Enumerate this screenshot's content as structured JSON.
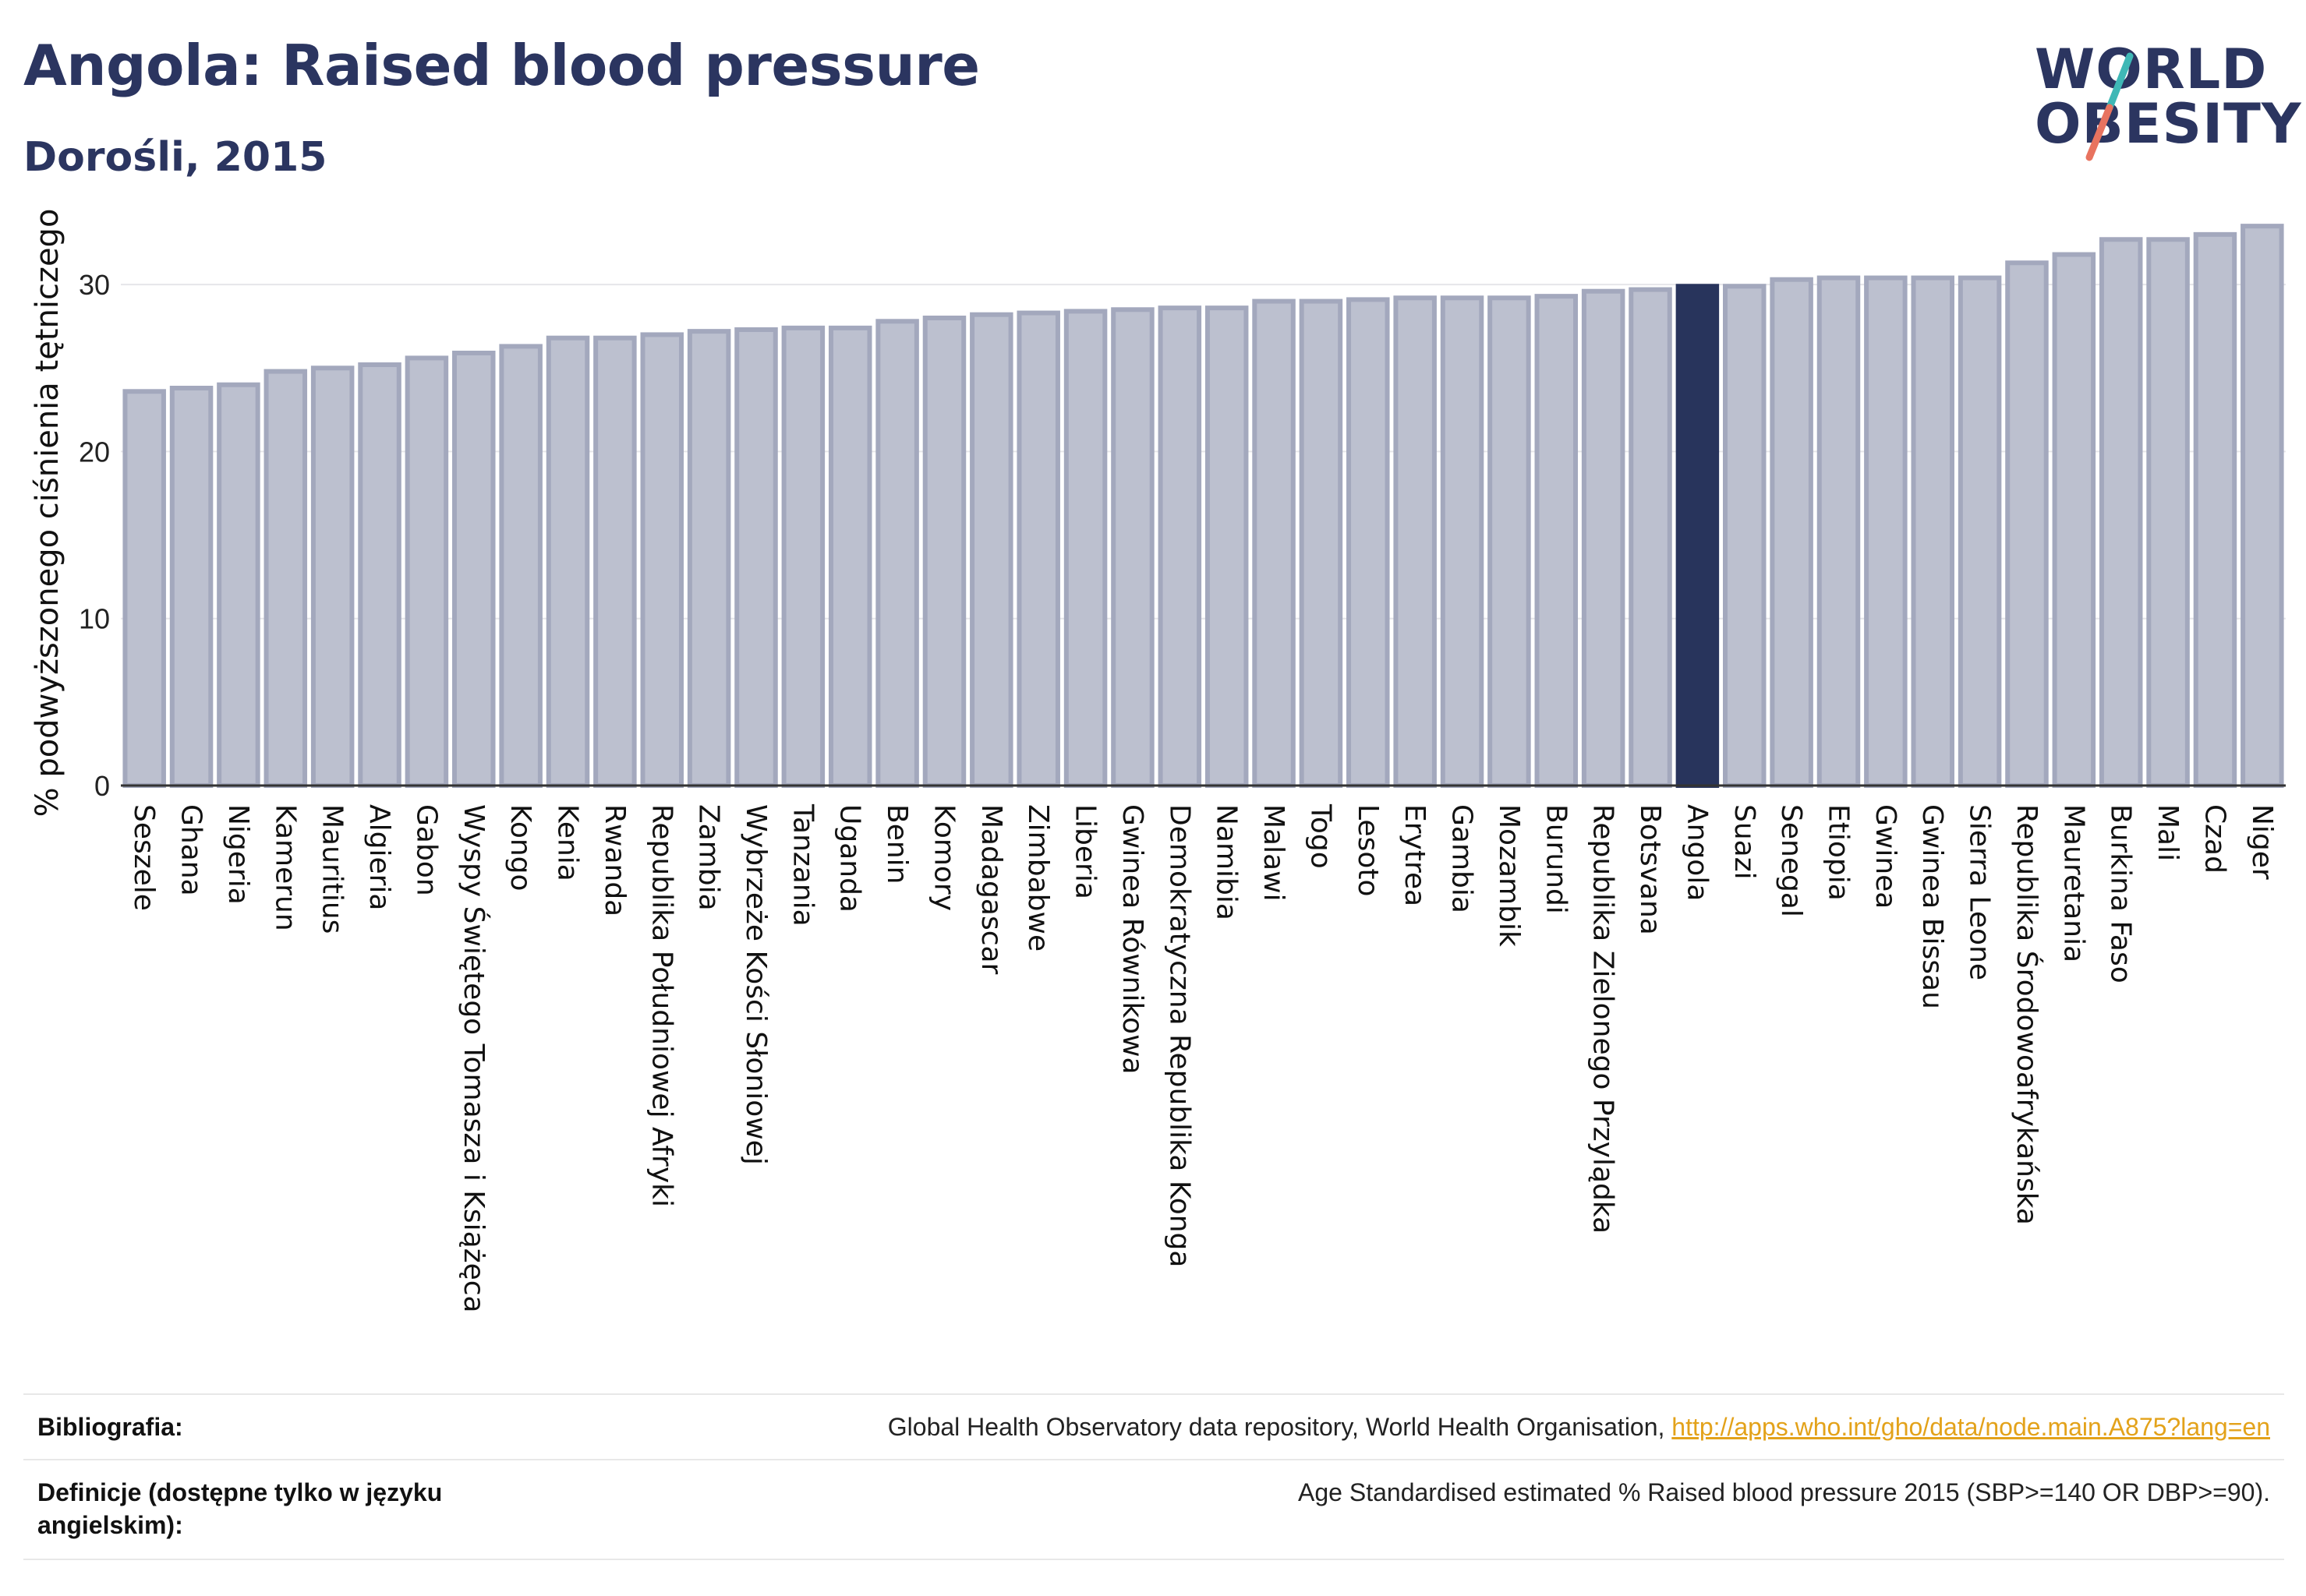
{
  "header": {
    "title": "Angola: Raised blood pressure",
    "subtitle": "Dorośli, 2015"
  },
  "logo": {
    "line1": "WORLD",
    "line2": "OBESITY",
    "accent_teal": "#3fb8b6",
    "accent_coral": "#e8735f"
  },
  "colors": {
    "bar_fill": "#bcc0cf",
    "bar_stroke": "#a3a8bd",
    "highlight_fill": "#28345c",
    "axis": "#333333",
    "grid": "#e6e6ea",
    "text_dark": "#2b3560"
  },
  "chart_data": {
    "type": "bar",
    "ylabel": "% podwyższonego ciśnienia tętniczego",
    "ylim": [
      0,
      35
    ],
    "yticks": [
      0,
      10,
      20,
      30
    ],
    "grid": true,
    "highlight": "Angola",
    "categories": [
      "Seszele",
      "Ghana",
      "Nigeria",
      "Kamerun",
      "Mauritius",
      "Algieria",
      "Gabon",
      "Wyspy Świętego Tomasza i Książęca",
      "Kongo",
      "Kenia",
      "Rwanda",
      "Republika Południowej Afryki",
      "Zambia",
      "Wybrzeże Kości Słoniowej",
      "Tanzania",
      "Uganda",
      "Benin",
      "Komory",
      "Madagascar",
      "Zimbabwe",
      "Liberia",
      "Gwinea Równikowa",
      "Demokratyczna Republika Konga",
      "Namibia",
      "Malawi",
      "Togo",
      "Lesoto",
      "Erytrea",
      "Gambia",
      "Mozambik",
      "Burundi",
      "Republika Zielonego Przylądka",
      "Botsvana",
      "Angola",
      "Suazi",
      "Senegal",
      "Etiopia",
      "Gwinea",
      "Gwinea Bissau",
      "Sierra Leone",
      "Republika Środowoafrykańska",
      "Mauretania",
      "Burkina Faso",
      "Mali",
      "Czad",
      "Niger"
    ],
    "values": [
      23.6,
      23.8,
      24.0,
      24.8,
      25.0,
      25.2,
      25.6,
      25.9,
      26.3,
      26.8,
      26.8,
      27.0,
      27.2,
      27.3,
      27.4,
      27.4,
      27.8,
      28.0,
      28.2,
      28.3,
      28.4,
      28.5,
      28.6,
      28.6,
      29.0,
      29.0,
      29.1,
      29.2,
      29.2,
      29.2,
      29.3,
      29.6,
      29.7,
      29.9,
      29.9,
      30.3,
      30.4,
      30.4,
      30.4,
      30.4,
      31.3,
      31.8,
      32.7,
      32.7,
      33.0,
      33.5
    ]
  },
  "references": {
    "bibliography_label": "Bibliografia:",
    "bibliography_text": "Global Health Observatory data repository, World Health Organisation, ",
    "bibliography_link": "http://apps.who.int/gho/data/node.main.A875?lang=en",
    "definition_label": "Definicje (dostępne tylko w języku angielskim):",
    "definition_text": "Age Standardised estimated % Raised blood pressure 2015 (SBP>=140 OR DBP>=90)."
  }
}
